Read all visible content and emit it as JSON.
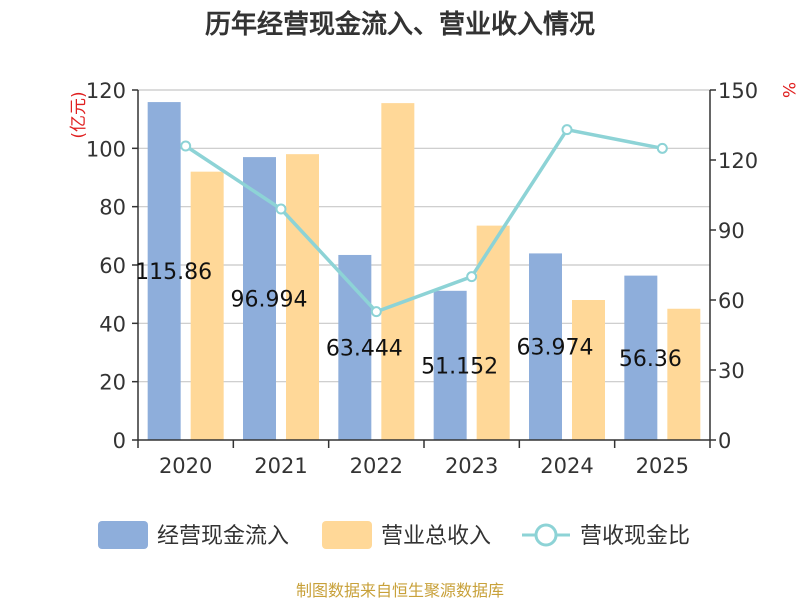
{
  "chart_data": {
    "type": "bar",
    "title": "历年经营现金流入、营业收入情况",
    "categories": [
      "2020",
      "2021",
      "2022",
      "2023",
      "2024",
      "2025"
    ],
    "left_axis": {
      "unit": "(亿元)",
      "ylim": [
        0,
        120
      ],
      "ticks": [
        "0",
        "20",
        "40",
        "60",
        "80",
        "100",
        "120"
      ]
    },
    "right_axis": {
      "unit": "%",
      "ylim": [
        0,
        150
      ],
      "ticks": [
        "0",
        "30",
        "60",
        "90",
        "120",
        "150"
      ]
    },
    "grid": true,
    "legend_position": "bottom",
    "series": [
      {
        "name": "经营现金流入",
        "type": "bar",
        "axis": "left",
        "color": "#8eaedb",
        "values": [
          115.86,
          96.994,
          63.444,
          51.152,
          63.974,
          56.36
        ],
        "labels": [
          "115.86",
          "96.994",
          "63.444",
          "51.152",
          "63.974",
          "56.36"
        ]
      },
      {
        "name": "营业总收入",
        "type": "bar",
        "axis": "left",
        "color": "#ffd898",
        "values": [
          92,
          98,
          115.5,
          73.5,
          48,
          45
        ]
      },
      {
        "name": "营收现金比",
        "type": "line",
        "axis": "right",
        "color": "#8dd3d6",
        "values": [
          126,
          99,
          55,
          70,
          133,
          125
        ]
      }
    ],
    "source": "制图数据来自恒生聚源数据库"
  }
}
